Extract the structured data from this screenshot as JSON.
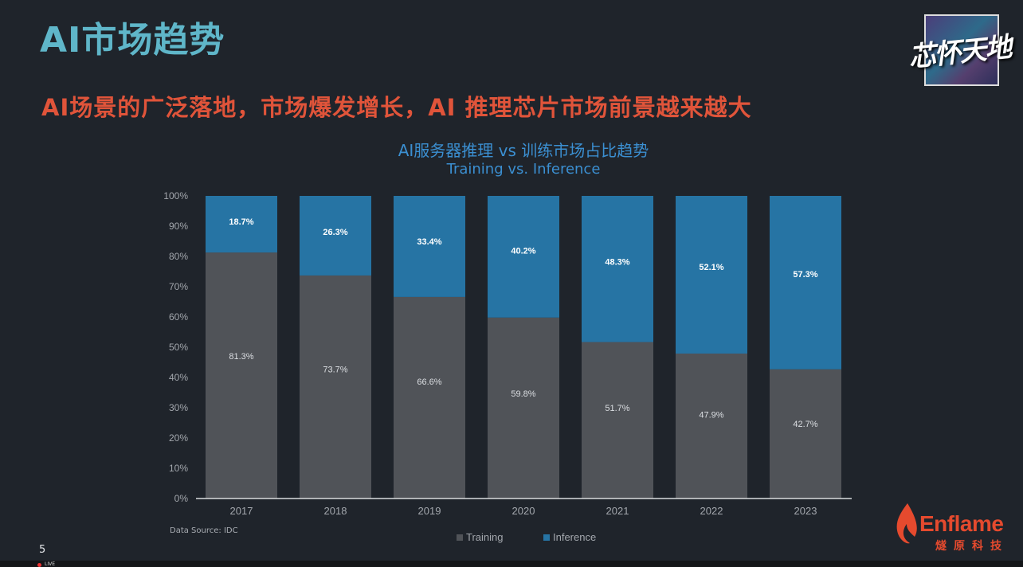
{
  "slide": {
    "title": "AI市场趋势",
    "subtitle": "AI场景的广泛落地，市场爆发增长，AI 推理芯片市场前景越来越大",
    "page_number": "5",
    "source": "Data Source: IDC"
  },
  "logo": {
    "text": "芯怀天地"
  },
  "brand": {
    "name": "Enflame",
    "name_cn": "燧原科技"
  },
  "player": {
    "live_label": "LIVE"
  },
  "chart_data": {
    "type": "bar",
    "stacked": true,
    "title": "AI服务器推理 vs 训练市场占比趋势",
    "subtitle": "Training vs. Inference",
    "categories": [
      "2017",
      "2018",
      "2019",
      "2020",
      "2021",
      "2022",
      "2023"
    ],
    "series": [
      {
        "name": "Training",
        "values": [
          81.3,
          73.7,
          66.6,
          59.8,
          51.7,
          47.9,
          42.7
        ],
        "labels": [
          "81.3%",
          "73.7%",
          "66.6%",
          "59.8%",
          "51.7%",
          "47.9%",
          "42.7%"
        ],
        "color": "#505358"
      },
      {
        "name": "Inference",
        "values": [
          18.7,
          26.3,
          33.4,
          40.2,
          48.3,
          52.1,
          57.3
        ],
        "labels": [
          "18.7%",
          "26.3%",
          "33.4%",
          "40.2%",
          "48.3%",
          "52.1%",
          "57.3%"
        ],
        "color": "#2674a4"
      }
    ],
    "yticks": [
      "0%",
      "10%",
      "20%",
      "30%",
      "40%",
      "50%",
      "60%",
      "70%",
      "80%",
      "90%",
      "100%"
    ],
    "ylim": [
      0,
      100
    ],
    "legend_position": "bottom-center"
  }
}
